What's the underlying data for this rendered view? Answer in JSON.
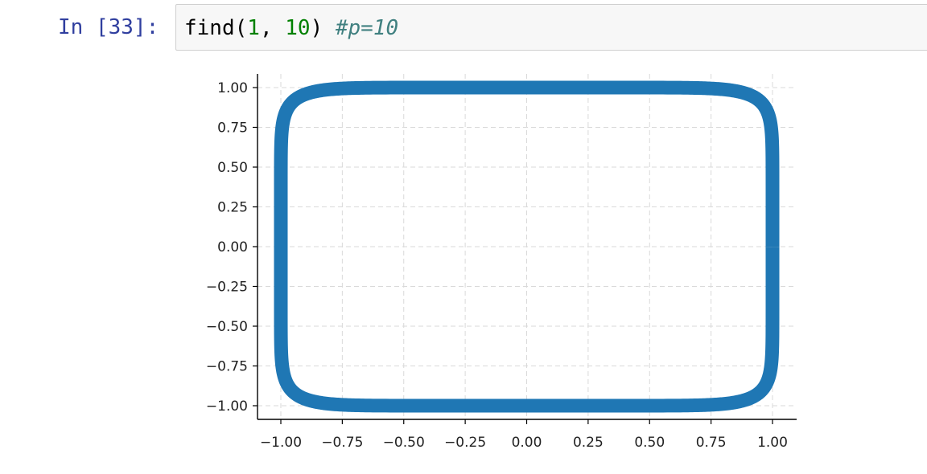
{
  "cell": {
    "prompt": "In [33]:",
    "code": {
      "func": "find(",
      "arg1": "1",
      "sep": ", ",
      "arg2": "10",
      "close": ") ",
      "comment": "#p=10"
    }
  },
  "chart_data": {
    "type": "line",
    "shape": "superellipse",
    "exponent": 10,
    "xlim": [
      -1.05,
      1.05
    ],
    "ylim": [
      -1.05,
      1.05
    ],
    "xticks": [
      "−1.00",
      "−0.75",
      "−0.50",
      "−0.25",
      "0.00",
      "0.25",
      "0.50",
      "0.75",
      "1.00"
    ],
    "yticks": [
      "1.00",
      "0.75",
      "0.50",
      "0.25",
      "0.00",
      "−0.25",
      "−0.50",
      "−0.75",
      "−1.00"
    ],
    "xtick_values": [
      -1,
      -0.75,
      -0.5,
      -0.25,
      0,
      0.25,
      0.5,
      0.75,
      1
    ],
    "ytick_values": [
      1,
      0.75,
      0.5,
      0.25,
      0,
      -0.25,
      -0.5,
      -0.75,
      -1
    ],
    "grid": true,
    "grid_style": "dashed",
    "series_color": "#1f77b4",
    "title": "",
    "xlabel": "",
    "ylabel": ""
  }
}
